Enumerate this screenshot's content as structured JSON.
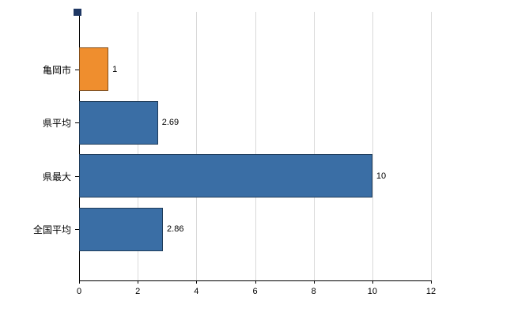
{
  "chart_data": {
    "type": "bar",
    "orientation": "horizontal",
    "categories": [
      "亀岡市",
      "県平均",
      "県最大",
      "全国平均"
    ],
    "values": [
      1,
      2.69,
      10,
      2.86
    ],
    "value_labels": [
      "1",
      "2.69",
      "10",
      "2.86"
    ],
    "bar_colors": [
      "#ef8e2e",
      "#3a6ea5",
      "#3a6ea5",
      "#3a6ea5"
    ],
    "title": "",
    "xlabel": "",
    "ylabel": "",
    "xlim": [
      0,
      12
    ],
    "x_ticks": [
      0,
      2,
      4,
      6,
      8,
      10,
      12
    ],
    "x_tick_labels": [
      "0",
      "2",
      "4",
      "6",
      "8",
      "10",
      "12"
    ],
    "grid": "vertical-on",
    "legend": "none"
  },
  "style": {
    "grid_color": "#d9d9d9",
    "axis_color": "#000000",
    "label_color": "#000000",
    "corner_marker_color": "#1f3864",
    "background": "#ffffff"
  }
}
